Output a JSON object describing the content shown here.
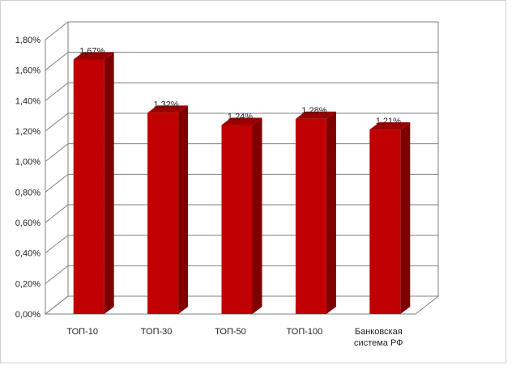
{
  "chart_data": {
    "type": "bar",
    "categories": [
      "ТОП-10",
      "ТОП-30",
      "ТОП-50",
      "ТОП-100",
      "Банковская система РФ"
    ],
    "category_lines": [
      [
        "ТОП-10"
      ],
      [
        "ТОП-30"
      ],
      [
        "ТОП-50"
      ],
      [
        "ТОП-100"
      ],
      [
        "Банковская",
        "система РФ"
      ]
    ],
    "values": [
      1.67,
      1.32,
      1.24,
      1.28,
      1.21
    ],
    "data_labels": [
      "1,67%",
      "1,32%",
      "1,24%",
      "1,28%",
      "1,21%"
    ],
    "y_ticks": [
      "0,00%",
      "0,20%",
      "0,40%",
      "0,60%",
      "0,80%",
      "1,00%",
      "1,20%",
      "1,40%",
      "1,60%",
      "1,80%"
    ],
    "y_tick_values": [
      0,
      0.2,
      0.4,
      0.6,
      0.8,
      1.0,
      1.2,
      1.4,
      1.6,
      1.8
    ],
    "ylim": [
      0,
      1.8
    ],
    "value_unit": "%",
    "grid": true,
    "legend": "none",
    "style": "3d-column",
    "colors": {
      "bar_front": "#c00000",
      "bar_side": "#7f0000",
      "bar_top": "#990000",
      "gridline": "#7f7f7f",
      "axis": "#7f7f7f"
    }
  }
}
